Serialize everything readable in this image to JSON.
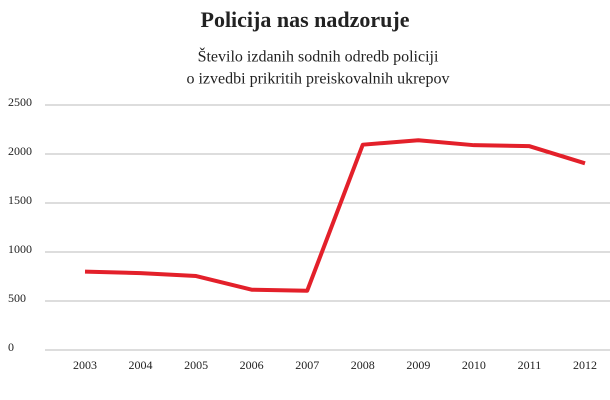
{
  "chart_data": {
    "type": "line",
    "title": "Policija nas nadzoruje",
    "subtitle": [
      "Število izdanih sodnih odredb policiji",
      "o izvedbi prikritih preiskovalnih ukrepov"
    ],
    "categories": [
      "2003",
      "2004",
      "2005",
      "2006",
      "2007",
      "2008",
      "2009",
      "2010",
      "2011",
      "2012"
    ],
    "values": [
      800,
      785,
      755,
      615,
      605,
      2095,
      2140,
      2090,
      2080,
      1905
    ],
    "color": "#e3202a",
    "ylim": [
      0,
      2500
    ],
    "yticks": [
      0,
      500,
      1000,
      1500,
      2000,
      2500
    ],
    "grid": true
  }
}
